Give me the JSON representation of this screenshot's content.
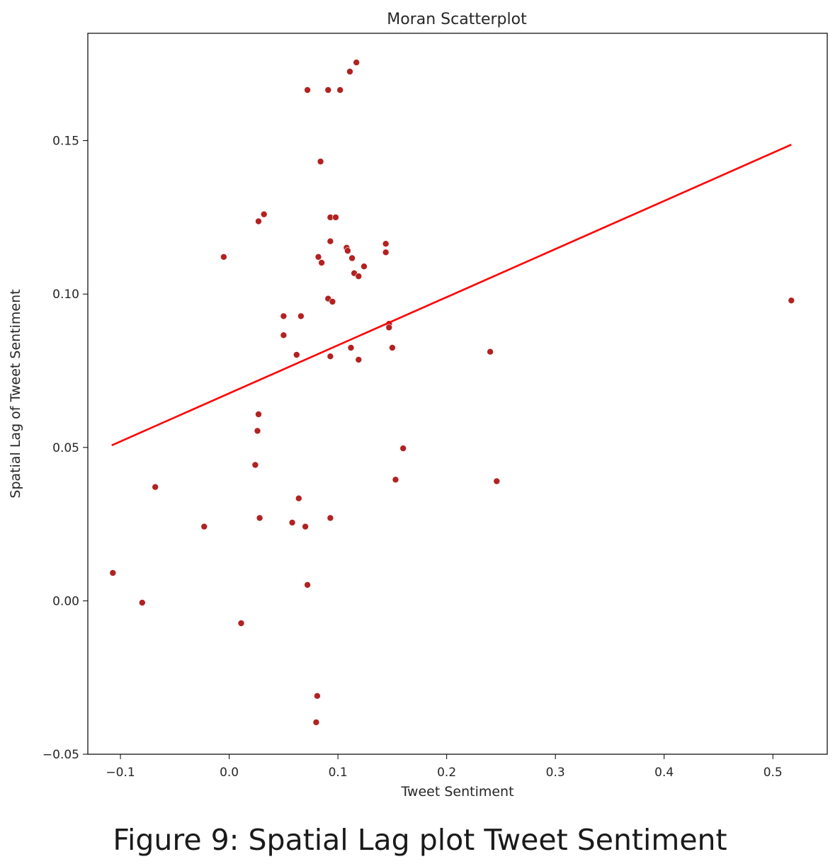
{
  "caption": "Figure 9: Spatial Lag plot Tweet Sentiment",
  "chart_data": {
    "type": "scatter",
    "title": "Moran Scatterplot",
    "xlabel": "Tweet Sentiment",
    "ylabel": "Spatial Lag of Tweet Sentiment",
    "xlim": [
      -0.13,
      0.55
    ],
    "ylim": [
      -0.05,
      0.185
    ],
    "xticks": [
      -0.1,
      0.0,
      0.1,
      0.2,
      0.3,
      0.4,
      0.5
    ],
    "xtick_labels": [
      "−0.1",
      "0.0",
      "0.1",
      "0.2",
      "0.3",
      "0.4",
      "0.5"
    ],
    "yticks": [
      -0.05,
      0.0,
      0.05,
      0.1,
      0.15
    ],
    "ytick_labels": [
      "−0.05",
      "0.00",
      "0.05",
      "0.10",
      "0.15"
    ],
    "grid": false,
    "point_color": "#b22222",
    "line_color": "#ff0000",
    "regression_line": {
      "x": [
        -0.108,
        0.517
      ],
      "y": [
        0.0507,
        0.1487
      ]
    },
    "points": [
      {
        "x": 0.117,
        "y": 0.1755
      },
      {
        "x": 0.111,
        "y": 0.1725
      },
      {
        "x": 0.072,
        "y": 0.1665
      },
      {
        "x": 0.091,
        "y": 0.1665
      },
      {
        "x": 0.102,
        "y": 0.1665
      },
      {
        "x": 0.084,
        "y": 0.1432
      },
      {
        "x": 0.032,
        "y": 0.126
      },
      {
        "x": 0.027,
        "y": 0.1237
      },
      {
        "x": 0.093,
        "y": 0.125
      },
      {
        "x": 0.098,
        "y": 0.125
      },
      {
        "x": 0.093,
        "y": 0.1172
      },
      {
        "x": -0.005,
        "y": 0.1121
      },
      {
        "x": 0.082,
        "y": 0.1121
      },
      {
        "x": 0.085,
        "y": 0.1102
      },
      {
        "x": 0.108,
        "y": 0.1151
      },
      {
        "x": 0.109,
        "y": 0.1141
      },
      {
        "x": 0.113,
        "y": 0.1117
      },
      {
        "x": 0.144,
        "y": 0.1164
      },
      {
        "x": 0.144,
        "y": 0.1136
      },
      {
        "x": 0.124,
        "y": 0.109
      },
      {
        "x": 0.115,
        "y": 0.1068
      },
      {
        "x": 0.119,
        "y": 0.1058
      },
      {
        "x": 0.091,
        "y": 0.0985
      },
      {
        "x": 0.095,
        "y": 0.0975
      },
      {
        "x": 0.05,
        "y": 0.0928
      },
      {
        "x": 0.066,
        "y": 0.0928
      },
      {
        "x": 0.05,
        "y": 0.0866
      },
      {
        "x": 0.147,
        "y": 0.0903
      },
      {
        "x": 0.147,
        "y": 0.0891
      },
      {
        "x": 0.112,
        "y": 0.0825
      },
      {
        "x": 0.15,
        "y": 0.0825
      },
      {
        "x": 0.062,
        "y": 0.0802
      },
      {
        "x": 0.093,
        "y": 0.0797
      },
      {
        "x": 0.119,
        "y": 0.0786
      },
      {
        "x": 0.24,
        "y": 0.0812
      },
      {
        "x": 0.517,
        "y": 0.0979
      },
      {
        "x": 0.027,
        "y": 0.0608
      },
      {
        "x": 0.026,
        "y": 0.0554
      },
      {
        "x": 0.16,
        "y": 0.0497
      },
      {
        "x": 0.024,
        "y": 0.0443
      },
      {
        "x": 0.153,
        "y": 0.0395
      },
      {
        "x": 0.246,
        "y": 0.039
      },
      {
        "x": -0.068,
        "y": 0.0371
      },
      {
        "x": 0.064,
        "y": 0.0334
      },
      {
        "x": 0.028,
        "y": 0.027
      },
      {
        "x": 0.093,
        "y": 0.027
      },
      {
        "x": 0.058,
        "y": 0.0255
      },
      {
        "x": 0.07,
        "y": 0.0242
      },
      {
        "x": -0.023,
        "y": 0.0242
      },
      {
        "x": -0.107,
        "y": 0.0091
      },
      {
        "x": 0.072,
        "y": 0.0052
      },
      {
        "x": -0.08,
        "y": -0.0006
      },
      {
        "x": 0.011,
        "y": -0.0073
      },
      {
        "x": 0.081,
        "y": -0.031
      },
      {
        "x": 0.08,
        "y": -0.0396
      }
    ]
  }
}
